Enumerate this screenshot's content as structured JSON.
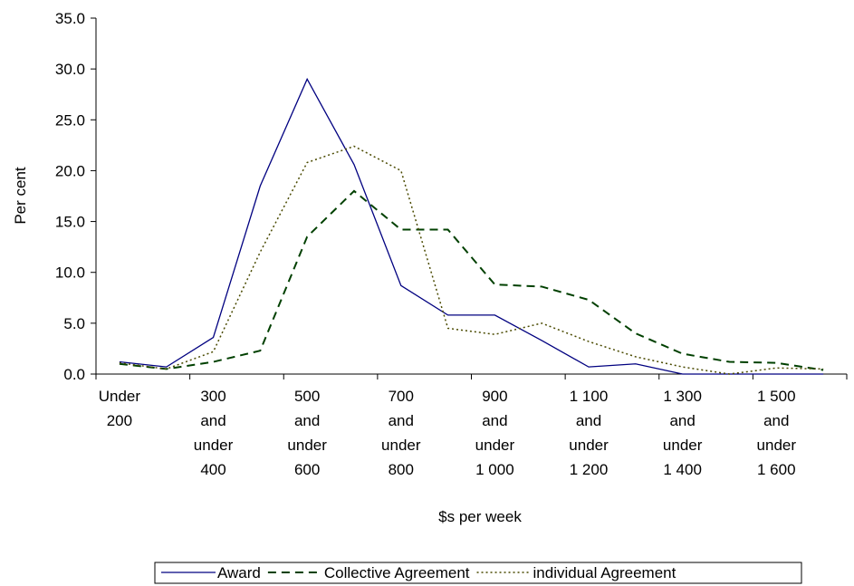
{
  "chart_data": {
    "type": "line",
    "x_label": "$s per week",
    "y_label": "Per cent",
    "categories": [
      [
        "Under",
        "200"
      ],
      null,
      [
        "300",
        "and",
        "under",
        "400"
      ],
      null,
      [
        "500",
        "and",
        "under",
        "600"
      ],
      null,
      [
        "700",
        "and",
        "under",
        "800"
      ],
      null,
      [
        "900",
        "and",
        "under",
        "1 000"
      ],
      null,
      [
        "1 100",
        "and",
        "under",
        "1 200"
      ],
      null,
      [
        "1 300",
        "and",
        "under",
        "1 400"
      ],
      null,
      [
        "1 500",
        "and",
        "under",
        "1 600"
      ],
      null
    ],
    "series": [
      {
        "name": "Award",
        "color": "#000080",
        "dash": "none",
        "width": 1.3,
        "values": [
          1.2,
          0.7,
          3.6,
          18.5,
          29.0,
          20.6,
          8.7,
          5.8,
          5.8,
          3.3,
          0.7,
          1.0,
          0.0,
          0.0,
          0.0,
          0.0
        ]
      },
      {
        "name": "Collective Agreement",
        "color": "#004000",
        "dash": "9,6",
        "width": 2,
        "values": [
          1.0,
          0.5,
          1.2,
          2.3,
          13.5,
          18.0,
          14.2,
          14.2,
          8.8,
          8.6,
          7.3,
          4.0,
          2.0,
          1.2,
          1.1,
          0.4
        ]
      },
      {
        "name": "individual Agreement",
        "color": "#4a4a00",
        "dash": "2,3",
        "width": 1.5,
        "values": [
          1.1,
          0.5,
          2.2,
          12.0,
          20.8,
          22.4,
          20.0,
          4.5,
          3.9,
          5.0,
          3.2,
          1.7,
          0.7,
          0.0,
          0.6,
          0.5
        ]
      }
    ],
    "ylim": [
      0,
      35
    ],
    "yticks": [
      {
        "value": 0,
        "label": "0.0"
      },
      {
        "value": 5,
        "label": "5.0"
      },
      {
        "value": 10,
        "label": "10.0"
      },
      {
        "value": 15,
        "label": "15.0"
      },
      {
        "value": 20,
        "label": "20.0"
      },
      {
        "value": 25,
        "label": "25.0"
      },
      {
        "value": 30,
        "label": "30.0"
      },
      {
        "value": 35,
        "label": "35.0"
      }
    ],
    "legend": "bottom"
  }
}
